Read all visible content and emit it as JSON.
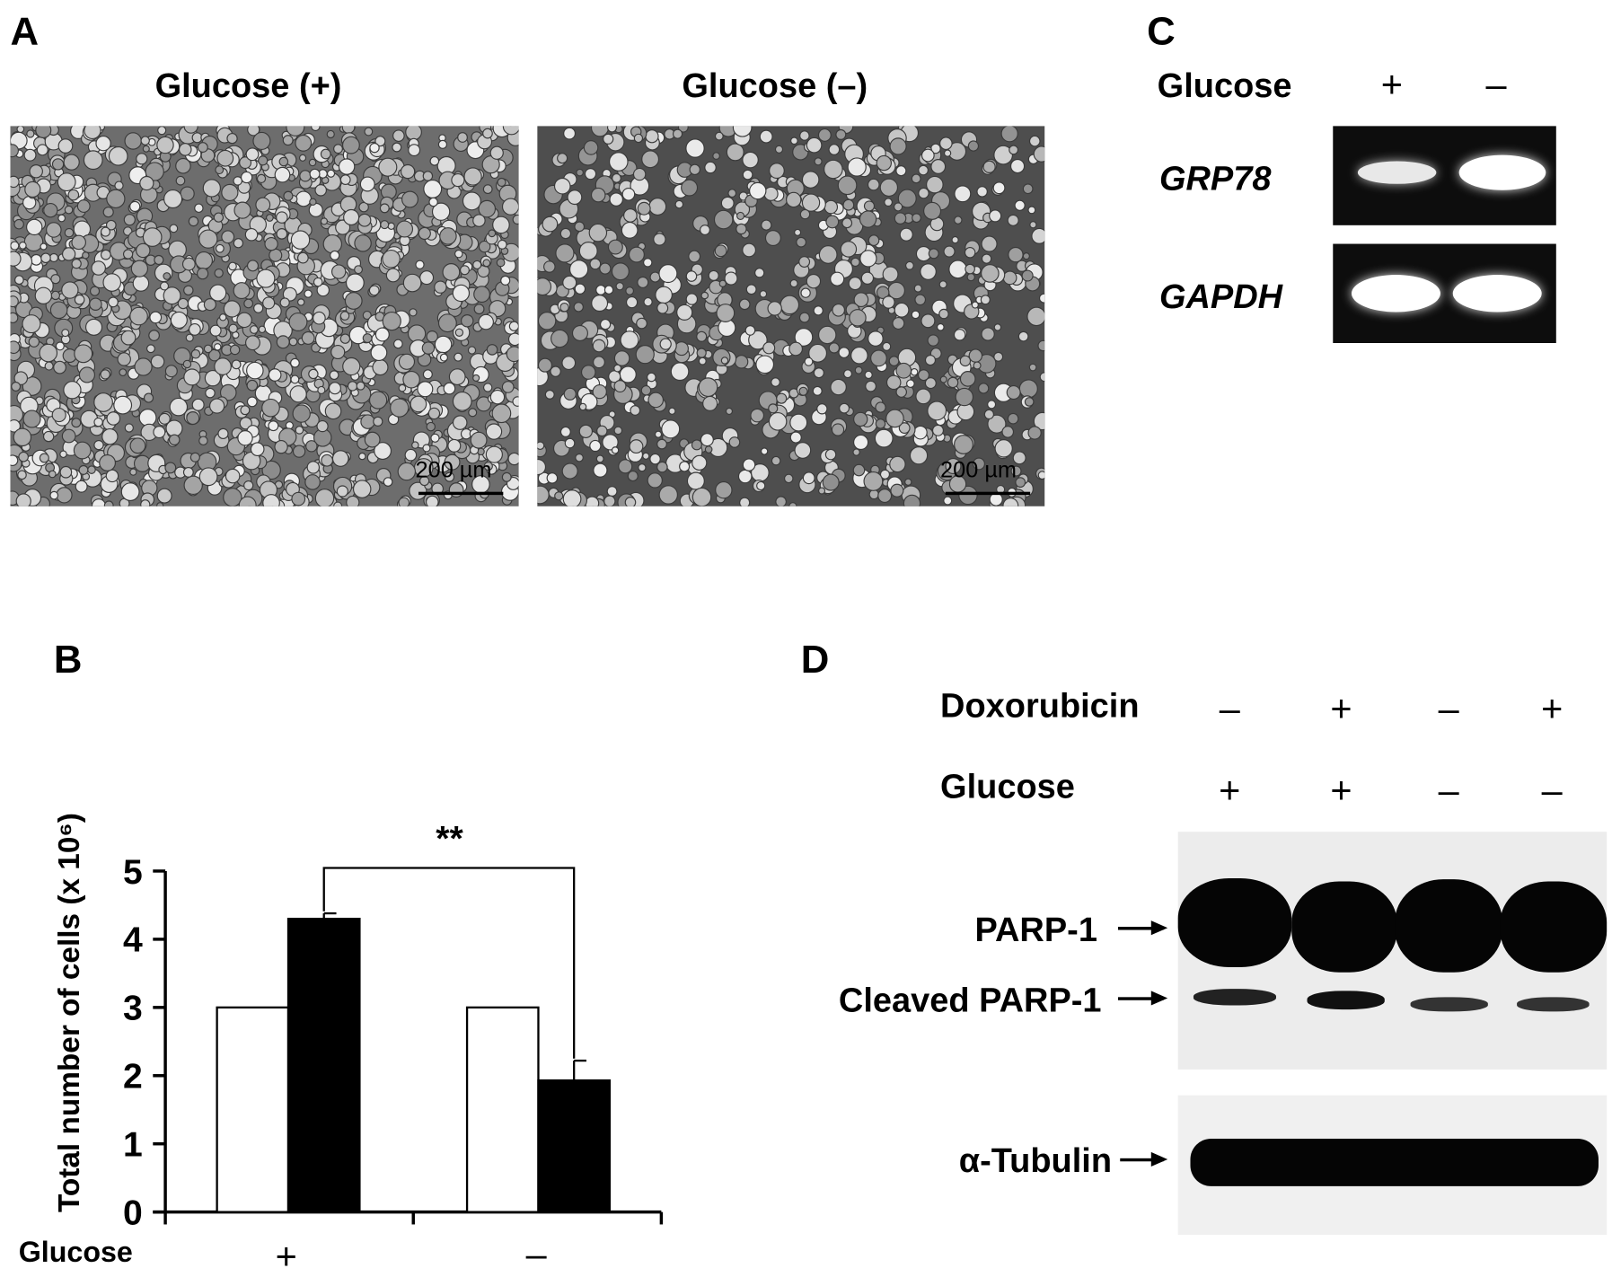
{
  "panel_a": {
    "letter": "A",
    "left_title": "Glucose (+)",
    "right_title": "Glucose (–)",
    "scale_bar_left": "200 µm",
    "scale_bar_right": "200 µm"
  },
  "panel_b": {
    "letter": "B",
    "row_label": "Glucose",
    "significance": "**"
  },
  "panel_c": {
    "letter": "C",
    "row_label": "Glucose",
    "lanes": [
      "+",
      "–"
    ],
    "genes": [
      "GRP78",
      "GAPDH"
    ]
  },
  "panel_d": {
    "letter": "D",
    "rows": [
      {
        "label": "Doxorubicin",
        "signs": [
          "–",
          "+",
          "–",
          "+"
        ]
      },
      {
        "label": "Glucose",
        "signs": [
          "+",
          "+",
          "–",
          "–"
        ]
      }
    ],
    "bands": [
      "PARP-1",
      "Cleaved PARP-1",
      "α-Tubulin"
    ]
  },
  "chart_data": {
    "type": "bar",
    "categories": [
      "+",
      "–"
    ],
    "xlabel": "Glucose",
    "ylabel": "Total number of cells (x 10⁶)",
    "ylim": [
      0,
      5
    ],
    "yticks": [
      "0",
      "1",
      "2",
      "3",
      "4",
      "5"
    ],
    "series": [
      {
        "values": [
          3.0,
          3.0
        ],
        "color": "#ffffff"
      },
      {
        "values": [
          4.3,
          1.93
        ],
        "errors": [
          0.08,
          0.29
        ],
        "color": "#000000"
      }
    ],
    "annotations": [
      "**"
    ]
  }
}
